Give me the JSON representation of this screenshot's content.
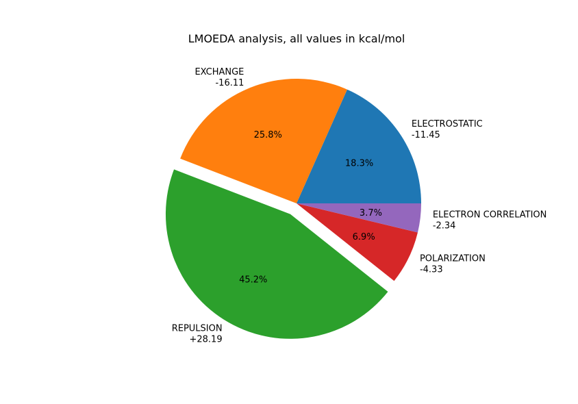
{
  "chart_data": {
    "type": "pie",
    "title": "LMOEDA analysis, all values in kcal/mol",
    "start_angle_deg": 0,
    "direction": "counterclockwise",
    "slices": [
      {
        "label": "ELECTROSTATIC",
        "value_text": "-11.45",
        "value": 11.45,
        "pct_text": "18.3%",
        "color": "#1f77b4",
        "explode": 0
      },
      {
        "label": "EXCHANGE",
        "value_text": "-16.11",
        "value": 16.11,
        "pct_text": "25.8%",
        "color": "#ff7f0e",
        "explode": 0
      },
      {
        "label": "REPULSION",
        "value_text": "+28.19",
        "value": 28.19,
        "pct_text": "45.2%",
        "color": "#2ca02c",
        "explode": 0.1
      },
      {
        "label": "POLARIZATION",
        "value_text": "-4.33",
        "value": 4.33,
        "pct_text": "6.9%",
        "color": "#d62728",
        "explode": 0
      },
      {
        "label": "ELECTRON CORRELATION",
        "value_text": "-2.34",
        "value": 2.34,
        "pct_text": "3.7%",
        "color": "#9467bd",
        "explode": 0
      }
    ]
  }
}
